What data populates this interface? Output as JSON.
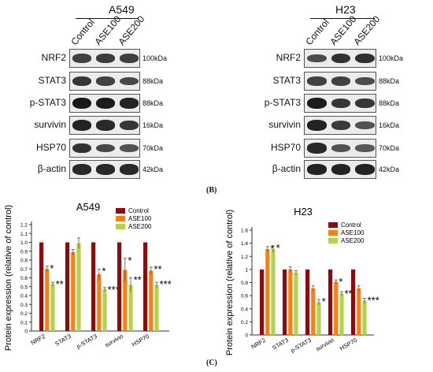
{
  "blot_label": "(B)",
  "chart_label": "(C)",
  "blots": [
    {
      "cell_line": "A549",
      "columns": [
        "Control",
        "ASE100",
        "ASE200"
      ],
      "rows": [
        {
          "protein": "NRF2",
          "mw": "100kDa",
          "intensity": [
            0.6,
            0.65,
            0.62
          ]
        },
        {
          "protein": "STAT3",
          "mw": "88kDa",
          "intensity": [
            0.7,
            0.6,
            0.55
          ]
        },
        {
          "protein": "p-STAT3",
          "mw": "88kDa",
          "intensity": [
            0.95,
            0.9,
            0.85
          ]
        },
        {
          "protein": "survivin",
          "mw": "16kDa",
          "intensity": [
            0.85,
            0.8,
            0.7
          ]
        },
        {
          "protein": "HSP70",
          "mw": "70kDa",
          "intensity": [
            0.75,
            0.55,
            0.45
          ]
        },
        {
          "protein": "β-actin",
          "mw": "42kDa",
          "intensity": [
            0.8,
            0.8,
            0.8
          ]
        }
      ]
    },
    {
      "cell_line": "H23",
      "columns": [
        "Control",
        "ASE100",
        "ASE200"
      ],
      "rows": [
        {
          "protein": "NRF2",
          "mw": "100kDa",
          "intensity": [
            0.5,
            0.75,
            0.75
          ]
        },
        {
          "protein": "STAT3",
          "mw": "88kDa",
          "intensity": [
            0.6,
            0.6,
            0.5
          ]
        },
        {
          "protein": "p-STAT3",
          "mw": "88kDa",
          "intensity": [
            0.9,
            0.7,
            0.7
          ]
        },
        {
          "protein": "survivin",
          "mw": "16kDa",
          "intensity": [
            0.85,
            0.65,
            0.45
          ]
        },
        {
          "protein": "HSP70",
          "mw": "70kDa",
          "intensity": [
            0.8,
            0.45,
            0.4
          ]
        },
        {
          "protein": "β-actin",
          "mw": "42kDa",
          "intensity": [
            0.85,
            0.85,
            0.85
          ]
        }
      ]
    }
  ],
  "chart_data": [
    {
      "type": "bar",
      "title": "A549",
      "ylabel": "Protein expression (relative of control)",
      "categories": [
        "NRF2",
        "STAT3",
        "p-STAT3",
        "survivin",
        "HSP70"
      ],
      "ylim": [
        0,
        1.2
      ],
      "yticks": [
        "0",
        "0.1",
        "0.2",
        "0.3",
        "0.4",
        "0.5",
        "0.6",
        "0.7",
        "0.8",
        "0.9",
        "1.0",
        "1.1",
        "1.2"
      ],
      "legend_position": "top-right",
      "series": [
        {
          "name": "Control",
          "color": "#8b0c0c",
          "values": [
            1.0,
            1.0,
            1.0,
            1.0,
            1.0
          ],
          "errors": [
            0,
            0,
            0,
            0,
            0
          ],
          "sig": [
            "",
            "",
            "",
            "",
            ""
          ]
        },
        {
          "name": "ASE100",
          "color": "#ff7f0e",
          "values": [
            0.7,
            0.89,
            0.64,
            0.69,
            0.68
          ],
          "errors": [
            0.03,
            0.03,
            0.06,
            0.13,
            0.04
          ],
          "sig": [
            "*",
            "",
            "*",
            "*",
            "**"
          ]
        },
        {
          "name": "ASE200",
          "color": "#b3d44a",
          "values": [
            0.53,
            0.99,
            0.47,
            0.52,
            0.52
          ],
          "errors": [
            0.02,
            0.06,
            0.02,
            0.08,
            0.03
          ],
          "sig": [
            "**",
            "",
            "***",
            "**",
            "***"
          ]
        }
      ]
    },
    {
      "type": "bar",
      "title": "H23",
      "ylabel": "Protein expression (relative of control)",
      "categories": [
        "NRF2",
        "STAT3",
        "p-STAT3",
        "survivin",
        "HSP70"
      ],
      "ylim": [
        0,
        1.6
      ],
      "yticks": [
        "0",
        "0.2",
        "0.4",
        "0.6",
        "0.8",
        "1",
        "1.2",
        "1.4",
        "1.6"
      ],
      "legend_position": "top-right",
      "series": [
        {
          "name": "Control",
          "color": "#8b0c0c",
          "values": [
            1.0,
            1.0,
            1.0,
            1.0,
            1.0
          ],
          "errors": [
            0,
            0,
            0,
            0,
            0
          ],
          "sig": [
            "",
            "",
            "",
            "",
            ""
          ]
        },
        {
          "name": "ASE100",
          "color": "#ff7f0e",
          "values": [
            1.31,
            1.0,
            0.71,
            0.81,
            0.71
          ],
          "errors": [
            0.04,
            0.04,
            0.04,
            0.03,
            0.04
          ],
          "sig": [
            "*",
            "",
            "",
            "*",
            ""
          ]
        },
        {
          "name": "ASE200",
          "color": "#b3d44a",
          "values": [
            1.31,
            0.95,
            0.5,
            0.63,
            0.52
          ],
          "errors": [
            0.05,
            0.03,
            0.04,
            0.03,
            0.04
          ],
          "sig": [
            "*",
            "",
            "*",
            "**",
            "***"
          ]
        }
      ]
    }
  ]
}
